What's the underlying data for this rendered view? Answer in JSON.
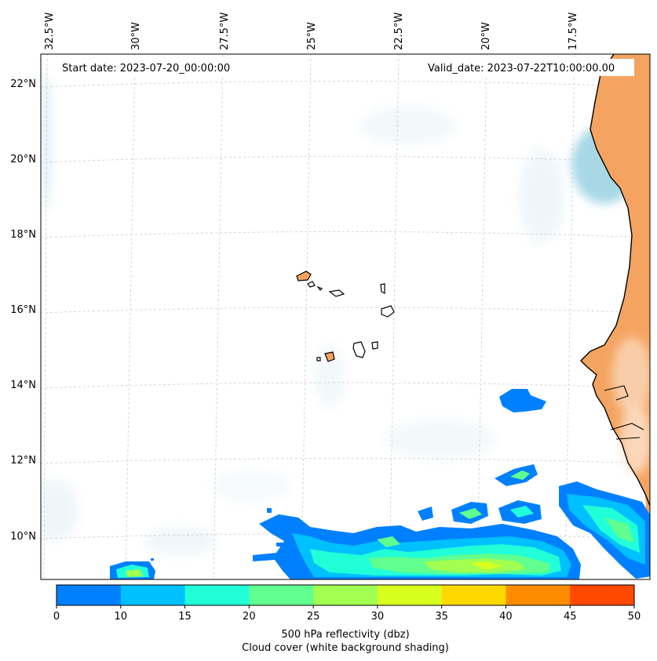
{
  "map": {
    "start_date": "Start date: 2023-07-20_00:00:00",
    "valid_date": "Valid_date: 2023-07-22T10:00:00.00",
    "lon_labels": [
      "32.5°W",
      "30°W",
      "27.5°W",
      "25°W",
      "22.5°W",
      "20°W",
      "17.5°W"
    ],
    "lat_labels": [
      "22°N",
      "20°N",
      "18°N",
      "16°N",
      "14°N",
      "12°N",
      "10°N"
    ],
    "colors": {
      "land": "#f4a460",
      "cloud": "#cfe6f0",
      "coast": "#000000",
      "grid": "#cccccc"
    }
  },
  "colorbar": {
    "ticks": [
      "0",
      "10",
      "15",
      "20",
      "25",
      "30",
      "35",
      "40",
      "45",
      "50"
    ],
    "colors": [
      "#0080ff",
      "#00c0ff",
      "#20ffd8",
      "#60ff90",
      "#a0ff50",
      "#d8ff20",
      "#ffd800",
      "#ff8c00",
      "#ff4800"
    ],
    "label_line1": "500 hPa reflectivity (dbz)",
    "label_line2": "Cloud cover (white background shading)"
  }
}
